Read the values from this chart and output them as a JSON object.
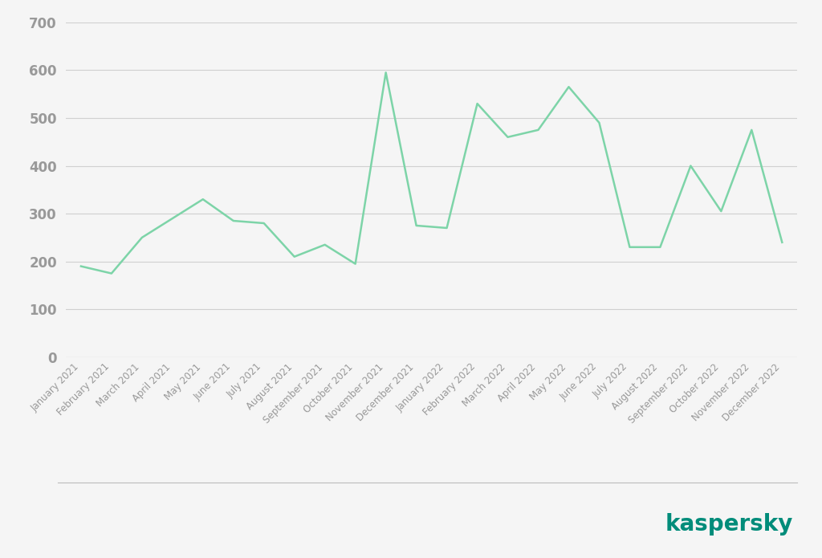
{
  "months": [
    "January 2021",
    "February 2021",
    "March 2021",
    "April 2021",
    "May 2021",
    "June 2021",
    "July 2021",
    "August 2021",
    "September 2021",
    "October 2021",
    "November 2021",
    "December 2021",
    "January 2022",
    "February 2022",
    "March 2022",
    "April 2022",
    "May 2022",
    "June 2022",
    "July 2022",
    "August 2022",
    "September 2022",
    "October 2022",
    "November 2022",
    "December 2022"
  ],
  "values": [
    190,
    175,
    250,
    290,
    330,
    285,
    280,
    210,
    235,
    195,
    595,
    275,
    270,
    530,
    460,
    475,
    565,
    490,
    230,
    230,
    400,
    305,
    475,
    240
  ],
  "line_color": "#7dd4a8",
  "background_color": "#f5f5f5",
  "grid_color": "#d0d0d0",
  "tick_color": "#999999",
  "label_color": "#999999",
  "ylim": [
    0,
    700
  ],
  "yticks": [
    0,
    100,
    200,
    300,
    400,
    500,
    600,
    700
  ],
  "kaspersky_color": "#008c7a",
  "kaspersky_text": "kaspersky",
  "bottom_line_color": "#bbbbbb"
}
